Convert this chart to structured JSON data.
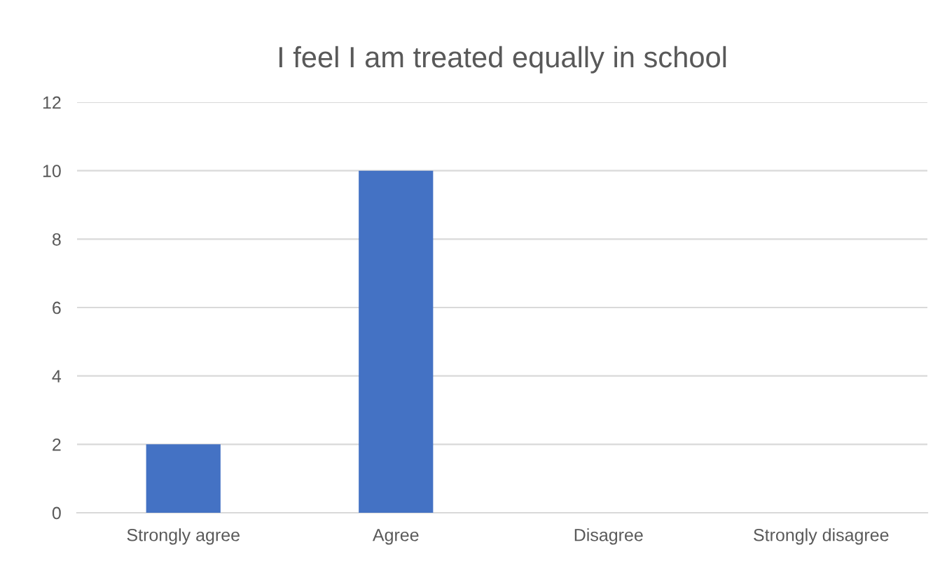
{
  "chart_data": {
    "type": "bar",
    "title": "I feel I am treated equally in school",
    "categories": [
      "Strongly agree",
      "Agree",
      "Disagree",
      "Strongly disagree"
    ],
    "values": [
      2,
      10,
      0,
      0
    ],
    "color": "#4472c4",
    "ylim": [
      0,
      12
    ],
    "yticks": [
      0,
      2,
      4,
      6,
      8,
      10,
      12
    ],
    "grid": "y",
    "legend": false
  }
}
